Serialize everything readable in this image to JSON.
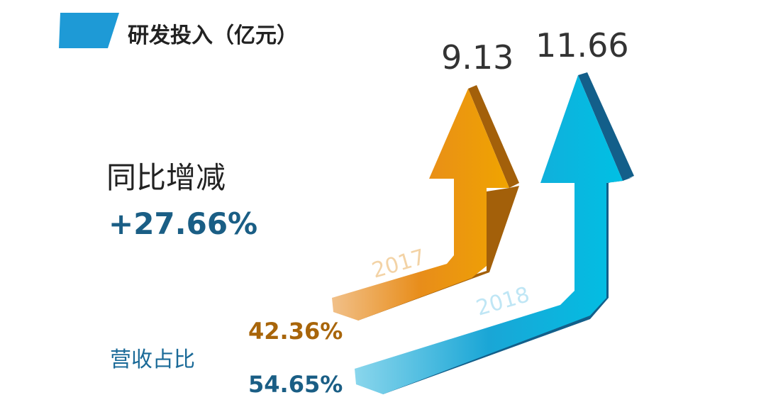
{
  "header": {
    "title": "研发投入（亿元）"
  },
  "growth": {
    "label": "同比增减",
    "value": "+27.66%"
  },
  "revenue_share_label": "营收占比",
  "years": [
    {
      "year": "2017",
      "amount": "9.13",
      "revenue_share": "42.36%"
    },
    {
      "year": "2018",
      "amount": "11.66",
      "revenue_share": "54.65%"
    }
  ]
}
